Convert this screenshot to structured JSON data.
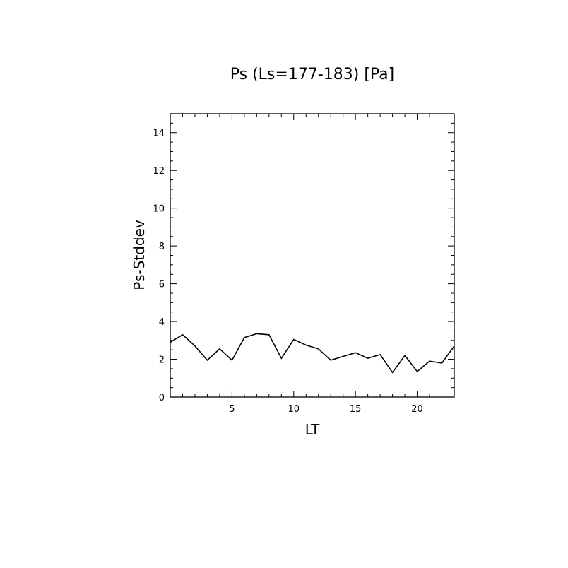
{
  "chart_data": {
    "type": "line",
    "title": "Ps (Ls=177-183) [Pa]",
    "xlabel": "LT",
    "ylabel": "Ps-Stddev",
    "xlim": [
      0,
      23
    ],
    "ylim": [
      0,
      15
    ],
    "xticks": [
      5,
      10,
      15,
      20
    ],
    "yticks": [
      0,
      2,
      4,
      6,
      8,
      10,
      12,
      14
    ],
    "grid": false,
    "series": [
      {
        "x": [
          0,
          1,
          2,
          3,
          4,
          5,
          6,
          7,
          8,
          9,
          10,
          11,
          12,
          13,
          14,
          15,
          16,
          17,
          18,
          19,
          20,
          21,
          22,
          23
        ],
        "y": [
          2.9,
          3.3,
          2.7,
          1.95,
          2.55,
          1.95,
          3.15,
          3.35,
          3.3,
          2.05,
          3.05,
          2.75,
          2.55,
          1.95,
          2.15,
          2.35,
          2.05,
          2.25,
          1.3,
          2.2,
          1.35,
          1.9,
          1.8,
          2.7
        ]
      }
    ]
  }
}
